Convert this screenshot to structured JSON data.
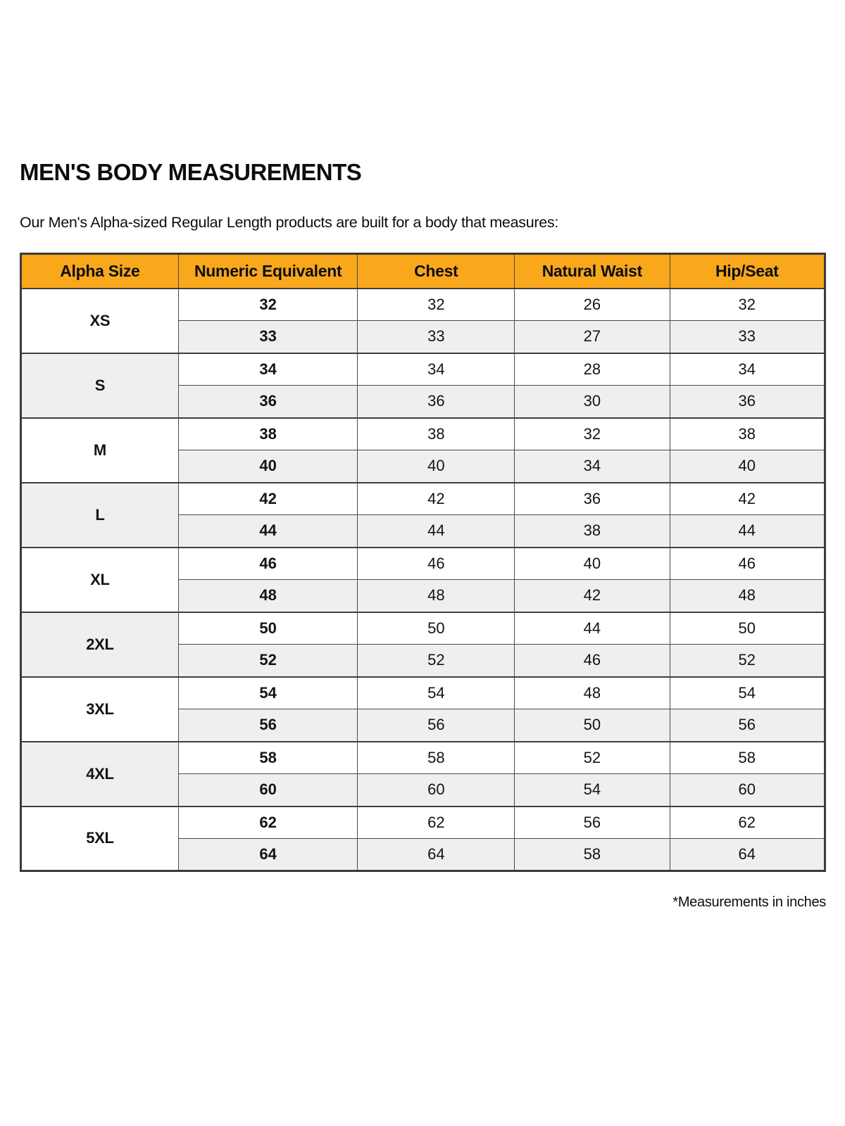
{
  "page": {
    "title": "MEN'S BODY MEASUREMENTS",
    "subtitle": "Our Men's Alpha-sized Regular Length products are built for a body that measures:",
    "footnote": "*Measurements in inches"
  },
  "table": {
    "columns": [
      "Alpha Size",
      "Numeric Equivalent",
      "Chest",
      "Natural Waist",
      "Hip/Seat"
    ],
    "groups": [
      {
        "alpha": "XS",
        "rows": [
          [
            "32",
            "32",
            "26",
            "32"
          ],
          [
            "33",
            "33",
            "27",
            "33"
          ]
        ]
      },
      {
        "alpha": "S",
        "rows": [
          [
            "34",
            "34",
            "28",
            "34"
          ],
          [
            "36",
            "36",
            "30",
            "36"
          ]
        ]
      },
      {
        "alpha": "M",
        "rows": [
          [
            "38",
            "38",
            "32",
            "38"
          ],
          [
            "40",
            "40",
            "34",
            "40"
          ]
        ]
      },
      {
        "alpha": "L",
        "rows": [
          [
            "42",
            "42",
            "36",
            "42"
          ],
          [
            "44",
            "44",
            "38",
            "44"
          ]
        ]
      },
      {
        "alpha": "XL",
        "rows": [
          [
            "46",
            "46",
            "40",
            "46"
          ],
          [
            "48",
            "48",
            "42",
            "48"
          ]
        ]
      },
      {
        "alpha": "2XL",
        "rows": [
          [
            "50",
            "50",
            "44",
            "50"
          ],
          [
            "52",
            "52",
            "46",
            "52"
          ]
        ]
      },
      {
        "alpha": "3XL",
        "rows": [
          [
            "54",
            "54",
            "48",
            "54"
          ],
          [
            "56",
            "56",
            "50",
            "56"
          ]
        ]
      },
      {
        "alpha": "4XL",
        "rows": [
          [
            "58",
            "58",
            "52",
            "58"
          ],
          [
            "60",
            "60",
            "54",
            "60"
          ]
        ]
      },
      {
        "alpha": "5XL",
        "rows": [
          [
            "62",
            "62",
            "56",
            "62"
          ],
          [
            "64",
            "64",
            "58",
            "64"
          ]
        ]
      }
    ],
    "colors": {
      "header_bg": "#F9A81C",
      "row_alt_bg": "#EFEFEF",
      "border": "#4A4A4A",
      "text": "#0D0D0D"
    }
  }
}
